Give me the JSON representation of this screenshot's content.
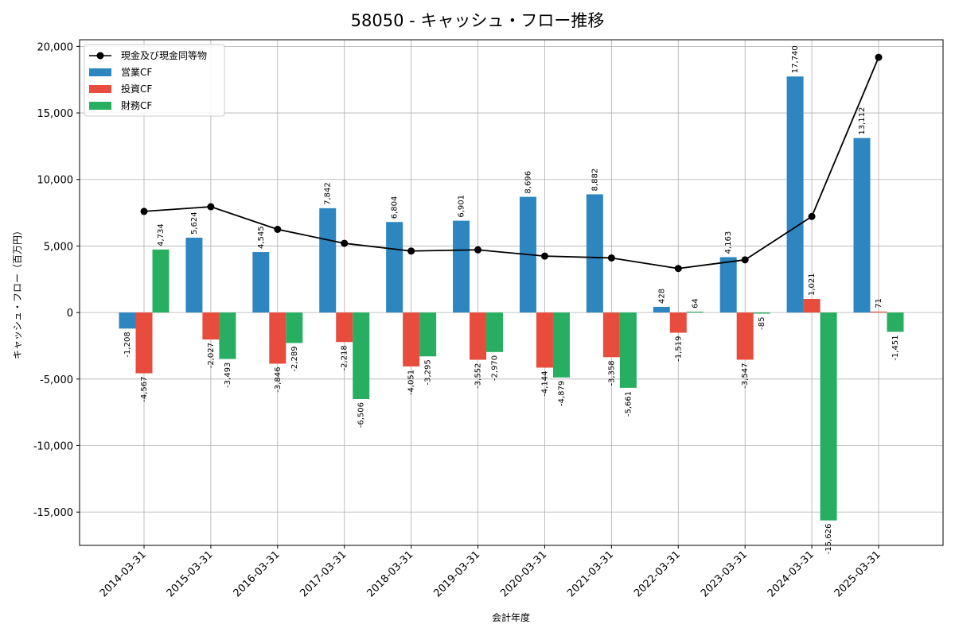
{
  "chart_data": {
    "type": "bar",
    "title": "58050 - キャッシュ・フロー推移",
    "xlabel": "会計年度",
    "ylabel": "キャッシュ・フロー（百万円）",
    "ylim": [
      -17500,
      20500
    ],
    "yticks": [
      -15000,
      -10000,
      -5000,
      0,
      5000,
      10000,
      15000,
      20000
    ],
    "ytick_labels": [
      "-15,000",
      "-10,000",
      "-5,000",
      "0",
      "5,000",
      "10,000",
      "15,000",
      "20,000"
    ],
    "grid": true,
    "legend_position": "top-left",
    "categories": [
      "2014-03-31",
      "2015-03-31",
      "2016-03-31",
      "2017-03-31",
      "2018-03-31",
      "2019-03-31",
      "2020-03-31",
      "2021-03-31",
      "2022-03-31",
      "2023-03-31",
      "2024-03-31",
      "2025-03-31"
    ],
    "series": [
      {
        "name": "営業CF",
        "color": "#2e86c1",
        "values": [
          -1208,
          5624,
          4545,
          7842,
          6804,
          6901,
          8696,
          8882,
          428,
          4163,
          17740,
          13112
        ],
        "labels": [
          "-1,208",
          "5,624",
          "4,545",
          "7,842",
          "6,804",
          "6,901",
          "8,696",
          "8,882",
          "428",
          "4,163",
          "17,740",
          "13,112"
        ]
      },
      {
        "name": "投資CF",
        "color": "#e74c3c",
        "values": [
          -4567,
          -2027,
          -3846,
          -2218,
          -4051,
          -3552,
          -4144,
          -3358,
          -1519,
          -3547,
          1021,
          71
        ],
        "labels": [
          "-4,567",
          "-2,027",
          "-3,846",
          "-2,218",
          "-4,051",
          "-3,552",
          "-4,144",
          "-3,358",
          "-1,519",
          "-3,547",
          "1,021",
          "71"
        ]
      },
      {
        "name": "財務CF",
        "color": "#27ae60",
        "values": [
          4734,
          -3493,
          -2289,
          -6506,
          -3295,
          -2970,
          -4879,
          -5661,
          64,
          -85,
          -15626,
          -1451
        ],
        "labels": [
          "4,734",
          "-3,493",
          "-2,289",
          "-6,506",
          "-3,295",
          "-2,970",
          "-4,879",
          "-5,661",
          "64",
          "-85",
          "-15,626",
          "-1,451"
        ]
      }
    ],
    "line_series": {
      "name": "現金及び現金同等物",
      "color": "#000000",
      "values": [
        7600,
        7950,
        6250,
        5200,
        4620,
        4710,
        4240,
        4100,
        3310,
        3960,
        7220,
        19180
      ]
    }
  }
}
